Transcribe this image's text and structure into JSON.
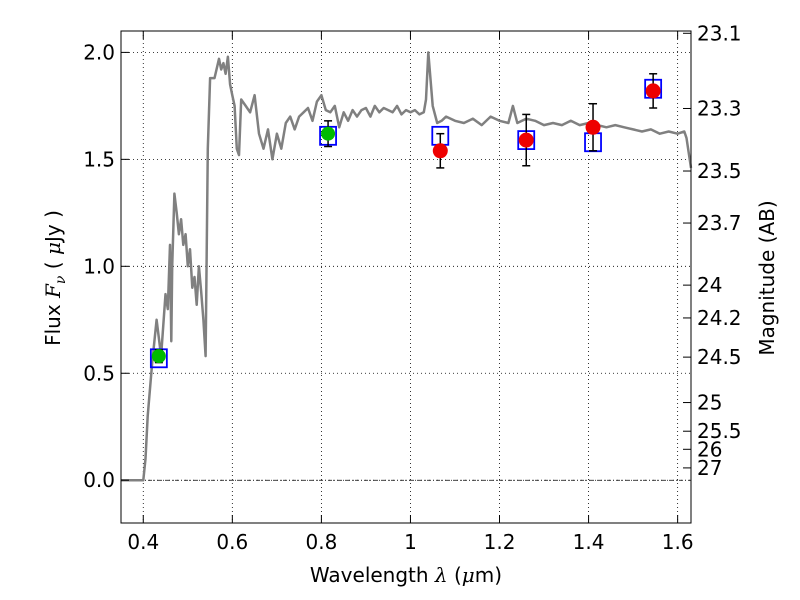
{
  "chart_data": {
    "type": "scatter",
    "xlabel": "Wavelength  λ (μm)",
    "ylabel": "Flux  F_ν  ( μJy )",
    "ylabel_parts": [
      "Flux  ",
      "F",
      "ν",
      "  ( ",
      "μ",
      "Jy )"
    ],
    "xlabel_parts": [
      "Wavelength  ",
      "λ",
      " (",
      "μ",
      "m)"
    ],
    "y2label": "Magnitude (AB)",
    "xlim": [
      0.35,
      1.63
    ],
    "ylim": [
      -0.2,
      2.1
    ],
    "grid": true,
    "x_ticks": [
      0.4,
      0.6,
      0.8,
      1.0,
      1.2,
      1.4,
      1.6
    ],
    "x_tick_labels": [
      "0.4",
      "0.6",
      "0.8",
      "1",
      "1.2",
      "1.4",
      "1.6"
    ],
    "y_ticks": [
      0.0,
      0.5,
      1.0,
      1.5,
      2.0
    ],
    "y_tick_labels": [
      "0.0",
      "0.5",
      "1.0",
      "1.5",
      "2.0"
    ],
    "mag_ticks": [
      "23.1",
      "23.3",
      "23.5",
      "23.7",
      "24",
      "24.2",
      "24.5",
      "25",
      "25.5",
      "26",
      "27"
    ],
    "colors": {
      "model": "#808080",
      "model_box": "#0000ff",
      "green_obs": "#00bb00",
      "red_obs": "#ee0000",
      "errorbar": "#000000",
      "grid": "#000000",
      "zero_line": "#000000"
    },
    "series": [
      {
        "role": "model_spectrum",
        "style": "line",
        "x": [
          0.35,
          0.4,
          0.405,
          0.41,
          0.42,
          0.43,
          0.44,
          0.45,
          0.455,
          0.46,
          0.463,
          0.465,
          0.47,
          0.475,
          0.48,
          0.485,
          0.49,
          0.495,
          0.5,
          0.505,
          0.51,
          0.515,
          0.52,
          0.525,
          0.53,
          0.535,
          0.54,
          0.545,
          0.55,
          0.56,
          0.57,
          0.575,
          0.58,
          0.585,
          0.59,
          0.595,
          0.6,
          0.605,
          0.61,
          0.615,
          0.62,
          0.63,
          0.64,
          0.65,
          0.66,
          0.67,
          0.68,
          0.69,
          0.7,
          0.71,
          0.72,
          0.73,
          0.74,
          0.75,
          0.76,
          0.77,
          0.78,
          0.79,
          0.8,
          0.81,
          0.82,
          0.83,
          0.84,
          0.85,
          0.86,
          0.87,
          0.88,
          0.89,
          0.9,
          0.91,
          0.92,
          0.93,
          0.94,
          0.95,
          0.96,
          0.97,
          0.98,
          0.99,
          1.0,
          1.01,
          1.02,
          1.03,
          1.035,
          1.04,
          1.05,
          1.06,
          1.07,
          1.08,
          1.1,
          1.12,
          1.14,
          1.16,
          1.18,
          1.2,
          1.22,
          1.23,
          1.24,
          1.26,
          1.28,
          1.3,
          1.32,
          1.34,
          1.36,
          1.38,
          1.4,
          1.42,
          1.44,
          1.46,
          1.48,
          1.5,
          1.52,
          1.54,
          1.56,
          1.58,
          1.6,
          1.615,
          1.62,
          1.63
        ],
        "y": [
          0.0,
          0.0,
          0.1,
          0.3,
          0.55,
          0.75,
          0.58,
          0.87,
          0.8,
          1.1,
          0.65,
          1.0,
          1.34,
          1.25,
          1.15,
          1.22,
          1.1,
          1.15,
          1.0,
          1.08,
          0.9,
          0.95,
          0.82,
          1.0,
          0.88,
          0.75,
          0.58,
          1.55,
          1.88,
          1.88,
          1.97,
          1.92,
          1.95,
          1.9,
          1.98,
          1.85,
          1.8,
          1.75,
          1.55,
          1.52,
          1.78,
          1.75,
          1.72,
          1.8,
          1.62,
          1.55,
          1.64,
          1.5,
          1.62,
          1.55,
          1.67,
          1.7,
          1.64,
          1.7,
          1.72,
          1.74,
          1.68,
          1.77,
          1.8,
          1.73,
          1.72,
          1.75,
          1.65,
          1.72,
          1.68,
          1.73,
          1.7,
          1.73,
          1.74,
          1.7,
          1.75,
          1.72,
          1.74,
          1.73,
          1.72,
          1.75,
          1.71,
          1.73,
          1.72,
          1.73,
          1.71,
          1.72,
          1.78,
          2.0,
          1.75,
          1.67,
          1.68,
          1.7,
          1.68,
          1.67,
          1.69,
          1.66,
          1.7,
          1.68,
          1.67,
          1.75,
          1.67,
          1.69,
          1.68,
          1.66,
          1.67,
          1.66,
          1.68,
          1.66,
          1.67,
          1.66,
          1.65,
          1.66,
          1.65,
          1.64,
          1.63,
          1.64,
          1.62,
          1.63,
          1.62,
          1.63,
          1.6,
          1.46
        ]
      },
      {
        "role": "model_bandpass",
        "style": "open_square",
        "x": [
          0.435,
          0.815,
          1.067,
          1.26,
          1.41,
          1.545
        ],
        "y": [
          0.57,
          1.61,
          1.61,
          1.59,
          1.58,
          1.83
        ]
      },
      {
        "role": "observed_green",
        "style": "filled_circle",
        "x": [
          0.435,
          0.815
        ],
        "y": [
          0.58,
          1.62
        ],
        "yerr": [
          0.03,
          0.06
        ]
      },
      {
        "role": "observed_red",
        "style": "filled_circle",
        "x": [
          1.067,
          1.26,
          1.41,
          1.545
        ],
        "y": [
          1.54,
          1.59,
          1.65,
          1.82
        ],
        "yerr": [
          0.08,
          0.12,
          0.11,
          0.08
        ]
      }
    ]
  }
}
